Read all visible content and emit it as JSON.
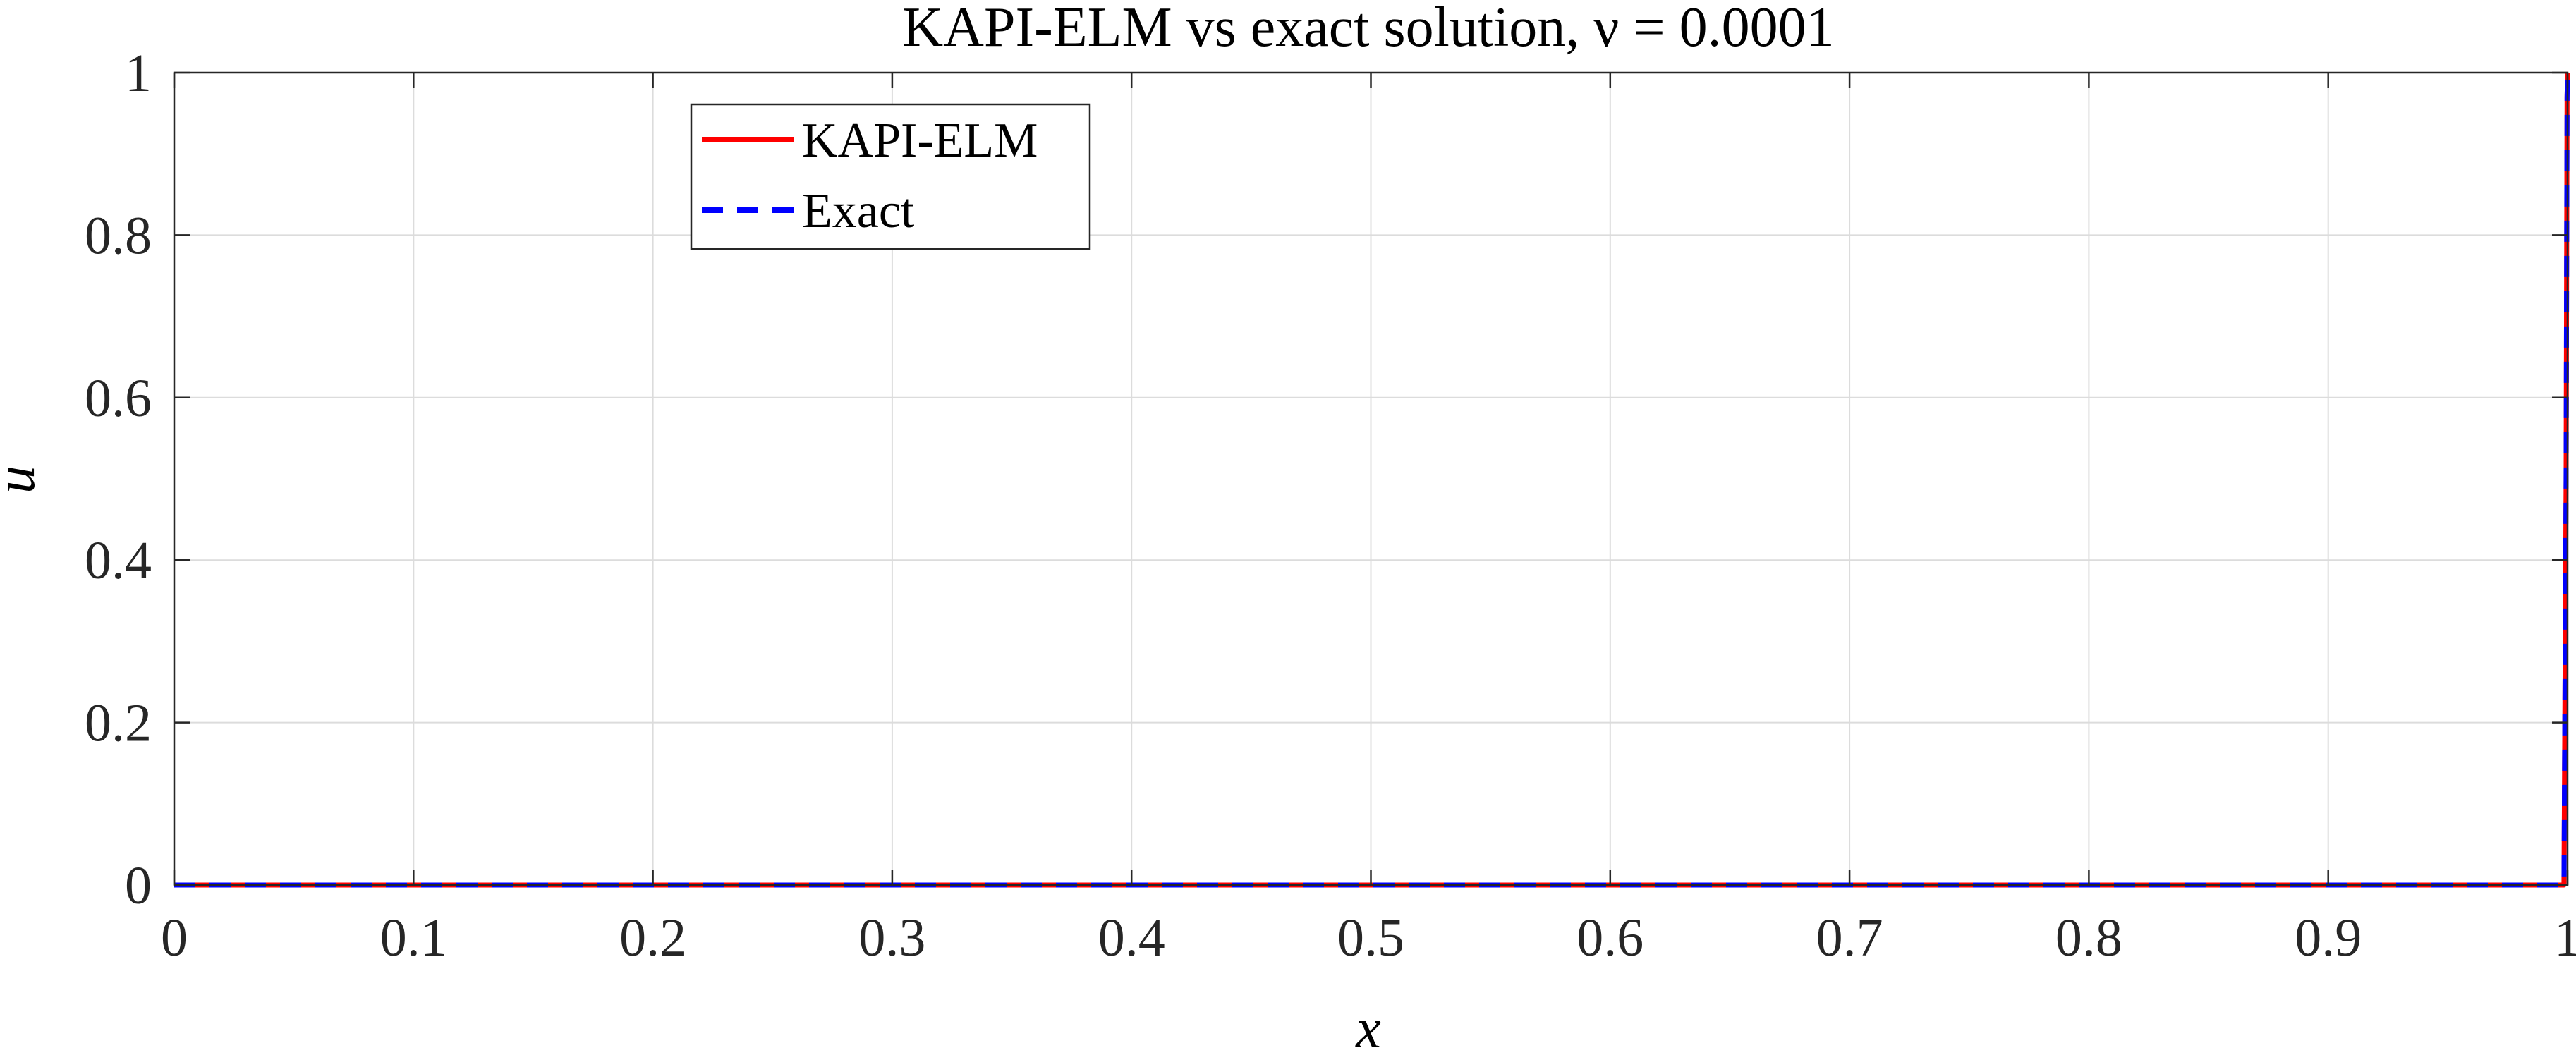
{
  "chart_data": {
    "type": "line",
    "title": "KAPI-ELM vs exact solution, ν = 0.0001",
    "xlabel": "x",
    "ylabel": "u",
    "xlim": [
      0,
      1
    ],
    "ylim": [
      0,
      1
    ],
    "xticks": [
      0,
      0.1,
      0.2,
      0.3,
      0.4,
      0.5,
      0.6,
      0.7,
      0.8,
      0.9,
      1
    ],
    "xtick_labels": [
      "0",
      "0.1",
      "0.2",
      "0.3",
      "0.4",
      "0.5",
      "0.6",
      "0.7",
      "0.8",
      "0.9",
      "1"
    ],
    "yticks": [
      0,
      0.2,
      0.4,
      0.6,
      0.8,
      1
    ],
    "ytick_labels": [
      "0",
      "0.2",
      "0.4",
      "0.6",
      "0.8",
      "1"
    ],
    "grid": true,
    "legend_position": "top-left",
    "series": [
      {
        "name": "KAPI-ELM",
        "color": "#ff0000",
        "line_style": "solid",
        "x": [
          0,
          0.9985,
          0.9994,
          0.9998,
          1.0
        ],
        "y": [
          0,
          0,
          0.5,
          0.97,
          1.0
        ]
      },
      {
        "name": "Exact",
        "color": "#0000ff",
        "line_style": "dashed",
        "x": [
          0,
          0.9985,
          0.9994,
          0.9998,
          1.0
        ],
        "y": [
          0,
          0,
          0.5,
          0.97,
          1.0
        ]
      }
    ]
  }
}
